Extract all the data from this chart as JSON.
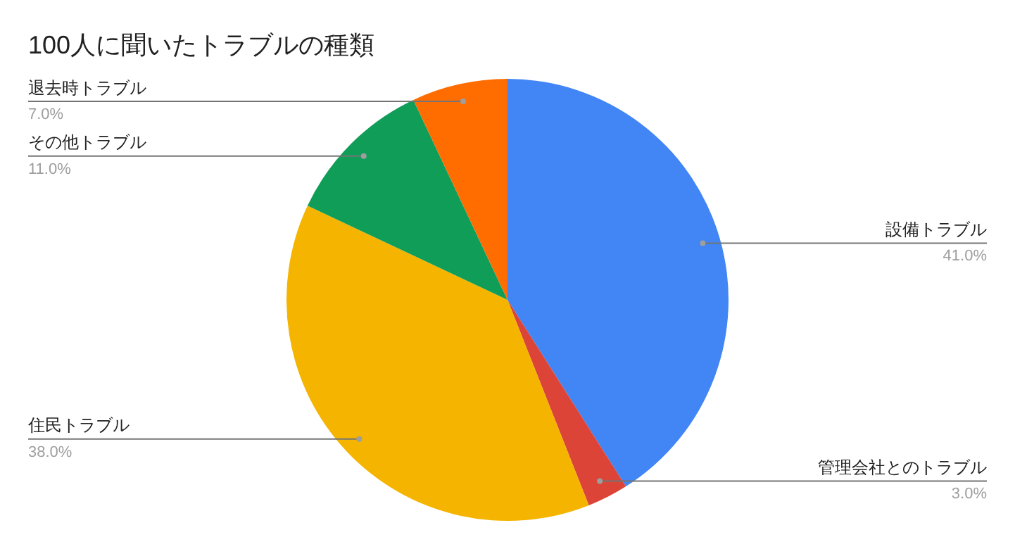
{
  "chart_data": {
    "type": "pie",
    "title": "100人に聞いたトラブルの種類",
    "categories": [
      "設備トラブル",
      "管理会社とのトラブル",
      "住民トラブル",
      "その他トラブル",
      "退去時トラブル"
    ],
    "values": [
      41,
      3,
      38,
      11,
      7
    ],
    "colors": [
      "#4285f4",
      "#db4437",
      "#f4b400",
      "#0f9d58",
      "#ff6d00"
    ],
    "value_labels": [
      "41.0%",
      "3.0%",
      "38.0%",
      "11.0%",
      "7.0%"
    ],
    "legend": false
  }
}
